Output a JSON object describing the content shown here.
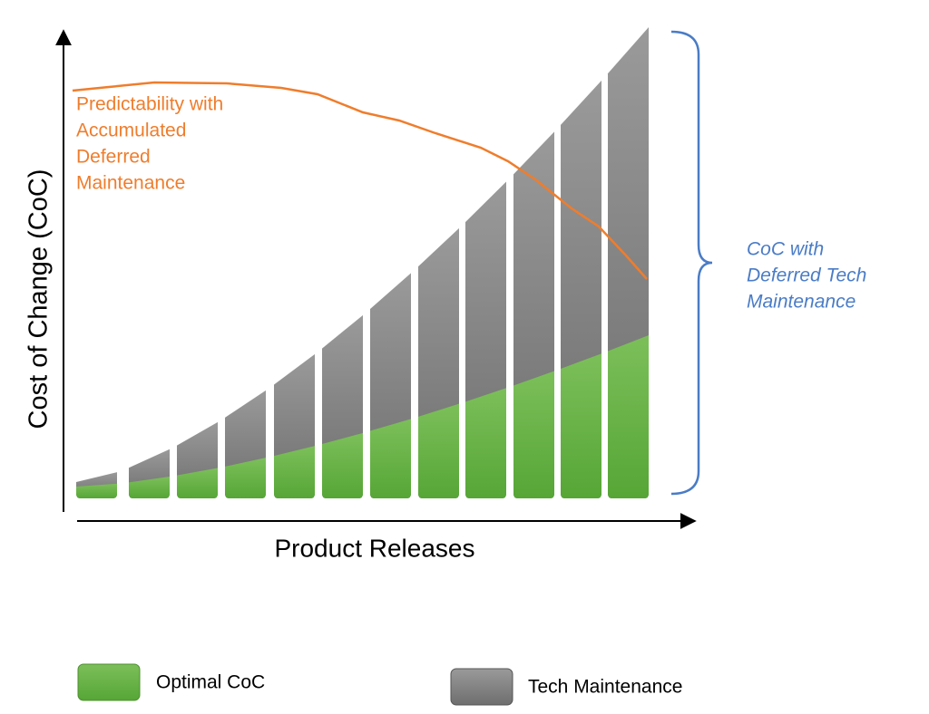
{
  "axes": {
    "y_label": "Cost of Change (CoC)",
    "x_label": "Product Releases"
  },
  "annotations": {
    "predictability": {
      "lines": [
        "Predictability with",
        "Accumulated",
        "Deferred",
        "Maintenance"
      ]
    },
    "bracket": {
      "lines": [
        "CoC with",
        "Deferred Tech",
        "Maintenance"
      ]
    }
  },
  "legend": {
    "items": [
      {
        "label": "Optimal CoC"
      },
      {
        "label": "Tech Maintenance"
      }
    ]
  }
}
